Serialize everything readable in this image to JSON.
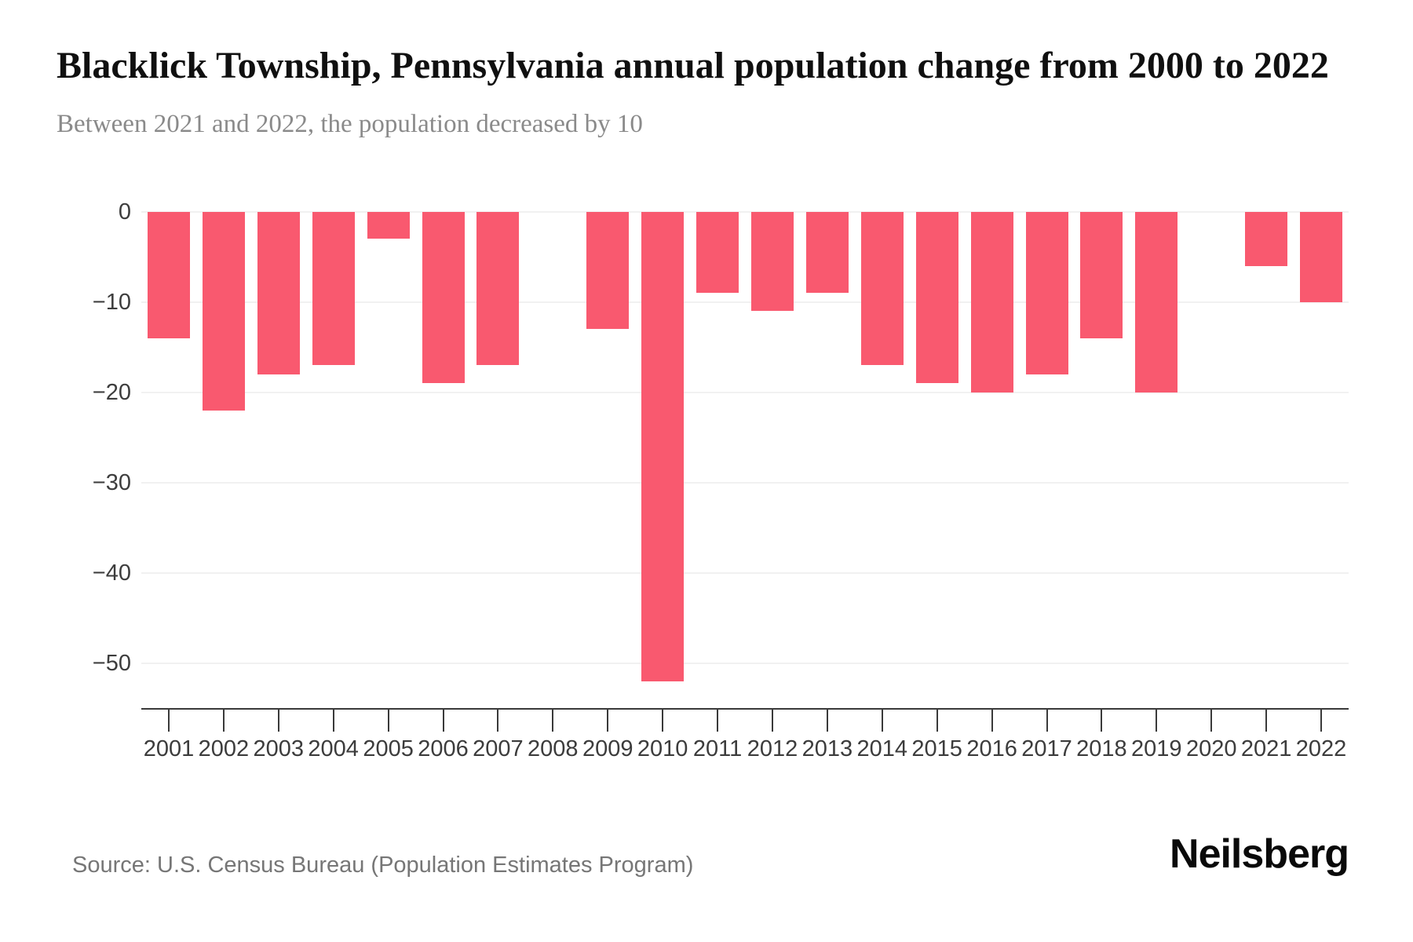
{
  "header": {
    "title": "Blacklick Township, Pennsylvania annual population change from 2000 to 2022",
    "subtitle": "Between 2021 and 2022, the population decreased by 10"
  },
  "footer": {
    "source": "Source: U.S. Census Bureau (Population Estimates Program)",
    "brand": "Neilsberg"
  },
  "colors": {
    "bar": "#f9596f",
    "grid": "#f1f1f1",
    "axis": "#3a3a3a",
    "tick_label": "#3c3c3c",
    "subtitle_text": "#8a8a8a",
    "source_text": "#767676"
  },
  "chart_data": {
    "type": "bar",
    "title": "Blacklick Township, Pennsylvania annual population change from 2000 to 2022",
    "categories": [
      "2001",
      "2002",
      "2003",
      "2004",
      "2005",
      "2006",
      "2007",
      "2008",
      "2009",
      "2010",
      "2011",
      "2012",
      "2013",
      "2014",
      "2015",
      "2016",
      "2017",
      "2018",
      "2019",
      "2020",
      "2021",
      "2022"
    ],
    "values": [
      -14,
      -22,
      -18,
      -17,
      -3,
      -19,
      -17,
      0,
      -13,
      -52,
      -9,
      -11,
      -9,
      -17,
      -19,
      -20,
      -18,
      -14,
      -20,
      0,
      -6,
      -10
    ],
    "xlabel": "",
    "ylabel": "",
    "ylim": [
      -55,
      0
    ],
    "yticks": [
      0,
      -10,
      -20,
      -30,
      -40,
      -50
    ],
    "grid": "horizontal",
    "legend": "none",
    "bar_color": "#f9596f",
    "no_bar_years": [
      "2008",
      "2020"
    ]
  }
}
